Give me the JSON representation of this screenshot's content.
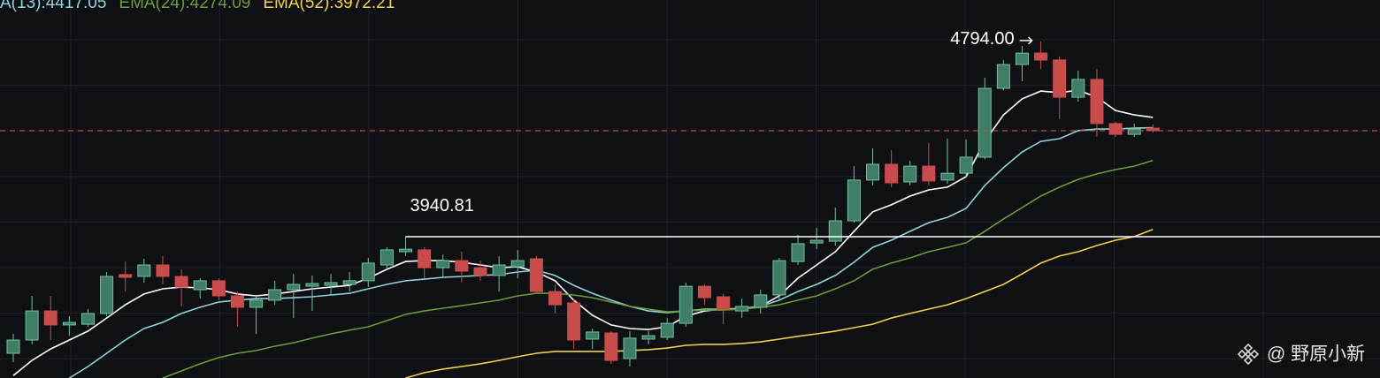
{
  "chart_data": {
    "type": "candlestick",
    "ylim": [
      3323,
      4975
    ],
    "up_color": "#3f7d66",
    "up_border": "#6fbf9d",
    "down_color": "#c94c4c",
    "grid": true,
    "open": [
      3431,
      3489,
      3616,
      3555,
      3558,
      3605,
      3775,
      3767,
      3817,
      3767,
      3709,
      3748,
      3682,
      3632,
      3663,
      3709,
      3724,
      3728,
      3732,
      3748,
      3817,
      3875,
      3883,
      3805,
      3836,
      3805,
      3771,
      3809,
      3844,
      3701,
      3651,
      3493,
      3520,
      3408,
      3493,
      3501,
      3562,
      3724,
      3678,
      3616,
      3632,
      3686,
      3832,
      3913,
      3921,
      4010,
      4188,
      4257,
      4180,
      4249,
      4188,
      4218,
      4288,
      4589,
      4693,
      4743,
      4713,
      4550,
      4628,
      4435,
      4388,
      4415
    ],
    "high": [
      3516,
      3682,
      3682,
      3593,
      3624,
      3786,
      3832,
      3844,
      3856,
      3798,
      3759,
      3759,
      3701,
      3682,
      3748,
      3778,
      3771,
      3778,
      3786,
      3848,
      3894,
      3940.81,
      3894,
      3863,
      3875,
      3836,
      3856,
      3883,
      3856,
      3732,
      3670,
      3539,
      3528,
      3528,
      3528,
      3585,
      3740,
      3732,
      3690,
      3670,
      3709,
      3848,
      3948,
      3979,
      4068,
      4249,
      4327,
      4319,
      4272,
      4350,
      4369,
      4365,
      4635,
      4713,
      4774,
      4794.0,
      4728,
      4666,
      4674,
      4442,
      4435,
      4431
    ],
    "low": [
      3392,
      3470,
      3489,
      3508,
      3547,
      3593,
      3701,
      3740,
      3732,
      3636,
      3670,
      3663,
      3547,
      3516,
      3643,
      3585,
      3616,
      3682,
      3701,
      3720,
      3798,
      3856,
      3759,
      3759,
      3740,
      3748,
      3701,
      3759,
      3693,
      3605,
      3450,
      3450,
      3385,
      3373,
      3470,
      3489,
      3547,
      3643,
      3558,
      3585,
      3605,
      3663,
      3817,
      3886,
      3902,
      4002,
      4164,
      4157,
      4164,
      4164,
      4172,
      4203,
      4280,
      4581,
      4620,
      4674,
      4454,
      4531,
      4377,
      4377,
      4377,
      4396
    ],
    "close": [
      3489,
      3616,
      3555,
      3566,
      3605,
      3767,
      3763,
      3817,
      3767,
      3720,
      3748,
      3682,
      3632,
      3663,
      3709,
      3732,
      3736,
      3740,
      3748,
      3825,
      3883,
      3886,
      3805,
      3836,
      3790,
      3771,
      3817,
      3836,
      3701,
      3643,
      3489,
      3524,
      3400,
      3497,
      3508,
      3562,
      3724,
      3674,
      3624,
      3636,
      3686,
      3836,
      3910,
      3925,
      4010,
      4188,
      4257,
      4176,
      4249,
      4184,
      4218,
      4288,
      4589,
      4693,
      4743,
      4713,
      4550,
      4628,
      4435,
      4388,
      4411,
      4404
    ],
    "series": [
      {
        "color": "#ffffff",
        "values": [
          3334,
          3400,
          3450,
          3489,
          3528,
          3585,
          3643,
          3690,
          3713,
          3720,
          3717,
          3709,
          3690,
          3682,
          3690,
          3701,
          3713,
          3720,
          3728,
          3759,
          3798,
          3832,
          3836,
          3836,
          3829,
          3817,
          3805,
          3809,
          3786,
          3748,
          3663,
          3597,
          3555,
          3539,
          3535,
          3547,
          3593,
          3616,
          3624,
          3624,
          3636,
          3682,
          3759,
          3817,
          3875,
          3964,
          4049,
          4080,
          4118,
          4145,
          4157,
          4203,
          4357,
          4473,
          4543,
          4577,
          4570,
          4581,
          4550,
          4492,
          4473,
          4462
        ]
      },
      {
        "name": "A(13):4417.05",
        "color": "#8fd3d8",
        "values": [
          null,
          null,
          null,
          3323,
          3373,
          3431,
          3489,
          3539,
          3566,
          3605,
          3632,
          3655,
          3663,
          3670,
          3670,
          3674,
          3678,
          3686,
          3693,
          3713,
          3732,
          3748,
          3755,
          3763,
          3767,
          3771,
          3775,
          3786,
          3794,
          3771,
          3728,
          3693,
          3663,
          3636,
          3616,
          3609,
          3616,
          3624,
          3624,
          3628,
          3636,
          3663,
          3701,
          3732,
          3771,
          3829,
          3894,
          3925,
          3964,
          4002,
          4025,
          4064,
          4164,
          4242,
          4311,
          4357,
          4369,
          4404,
          4411,
          4411,
          4415,
          4417.05
        ]
      },
      {
        "name": "EMA(24):4274.09",
        "color": "#6a9a3a",
        "values": [
          null,
          null,
          null,
          null,
          null,
          null,
          null,
          null,
          3323,
          3354,
          3385,
          3412,
          3431,
          3443,
          3462,
          3477,
          3497,
          3516,
          3532,
          3547,
          3574,
          3601,
          3616,
          3628,
          3639,
          3651,
          3663,
          3682,
          3693,
          3693,
          3686,
          3674,
          3655,
          3636,
          3624,
          3612,
          3616,
          3620,
          3620,
          3624,
          3632,
          3643,
          3663,
          3682,
          3713,
          3748,
          3798,
          3825,
          3848,
          3875,
          3894,
          3914,
          3964,
          4018,
          4068,
          4118,
          4157,
          4191,
          4215,
          4234,
          4249,
          4274.09
        ]
      },
      {
        "name": "EMA(52):3972.21",
        "color": "#f0d24a",
        "values": [
          null,
          null,
          null,
          null,
          null,
          null,
          null,
          null,
          null,
          null,
          null,
          null,
          null,
          null,
          null,
          null,
          null,
          null,
          null,
          null,
          null,
          3323,
          3346,
          3362,
          3373,
          3385,
          3400,
          3416,
          3431,
          3439,
          3439,
          3439,
          3439,
          3443,
          3447,
          3454,
          3466,
          3470,
          3470,
          3474,
          3481,
          3493,
          3505,
          3516,
          3528,
          3543,
          3558,
          3585,
          3605,
          3624,
          3643,
          3670,
          3701,
          3732,
          3778,
          3825,
          3856,
          3875,
          3902,
          3925,
          3941,
          3972.21
        ]
      }
    ],
    "annotations": [
      "4794.00",
      "3940.81"
    ],
    "watermark": "@ 野原小新"
  }
}
